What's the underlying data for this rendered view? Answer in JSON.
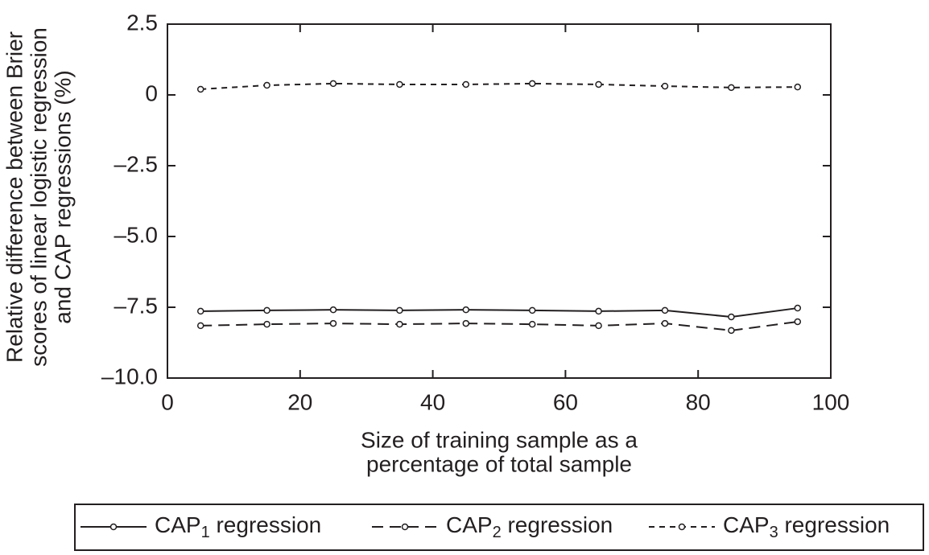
{
  "chart_data": {
    "type": "line",
    "x_label": [
      "Size of training sample as a",
      "percentage of total sample"
    ],
    "y_label": [
      "Relative difference between Brier",
      "scores of linear logistic regression",
      "and CAP regressions (%)"
    ],
    "x": [
      5,
      15,
      25,
      35,
      45,
      55,
      65,
      75,
      85,
      95
    ],
    "series": [
      {
        "name": [
          "CAP",
          "1",
          " regression"
        ],
        "color": "#231f20",
        "dash": "solid",
        "values": [
          -7.64,
          -7.61,
          -7.59,
          -7.61,
          -7.59,
          -7.61,
          -7.64,
          -7.61,
          -7.84,
          -7.53
        ]
      },
      {
        "name": [
          "CAP",
          "2",
          " regression"
        ],
        "color": "#231f20",
        "dash": "long",
        "values": [
          -8.15,
          -8.1,
          -8.07,
          -8.1,
          -8.07,
          -8.1,
          -8.15,
          -8.07,
          -8.32,
          -8.01
        ]
      },
      {
        "name": [
          "CAP",
          "3",
          " regression"
        ],
        "color": "#231f20",
        "dash": "short",
        "values": [
          0.2,
          0.34,
          0.4,
          0.37,
          0.37,
          0.4,
          0.37,
          0.31,
          0.26,
          0.28
        ]
      }
    ],
    "xlim": [
      0,
      100
    ],
    "xticks": [
      0,
      20,
      40,
      60,
      80,
      100
    ],
    "ylim": [
      -10,
      2.5
    ],
    "yticks": [
      {
        "value": -10,
        "label": "–10.0"
      },
      {
        "value": -7.5,
        "label": "–7.5"
      },
      {
        "value": -5,
        "label": "–5.0"
      },
      {
        "value": -2.5,
        "label": "–2.5"
      },
      0,
      2.5
    ],
    "legend": "bottom"
  }
}
